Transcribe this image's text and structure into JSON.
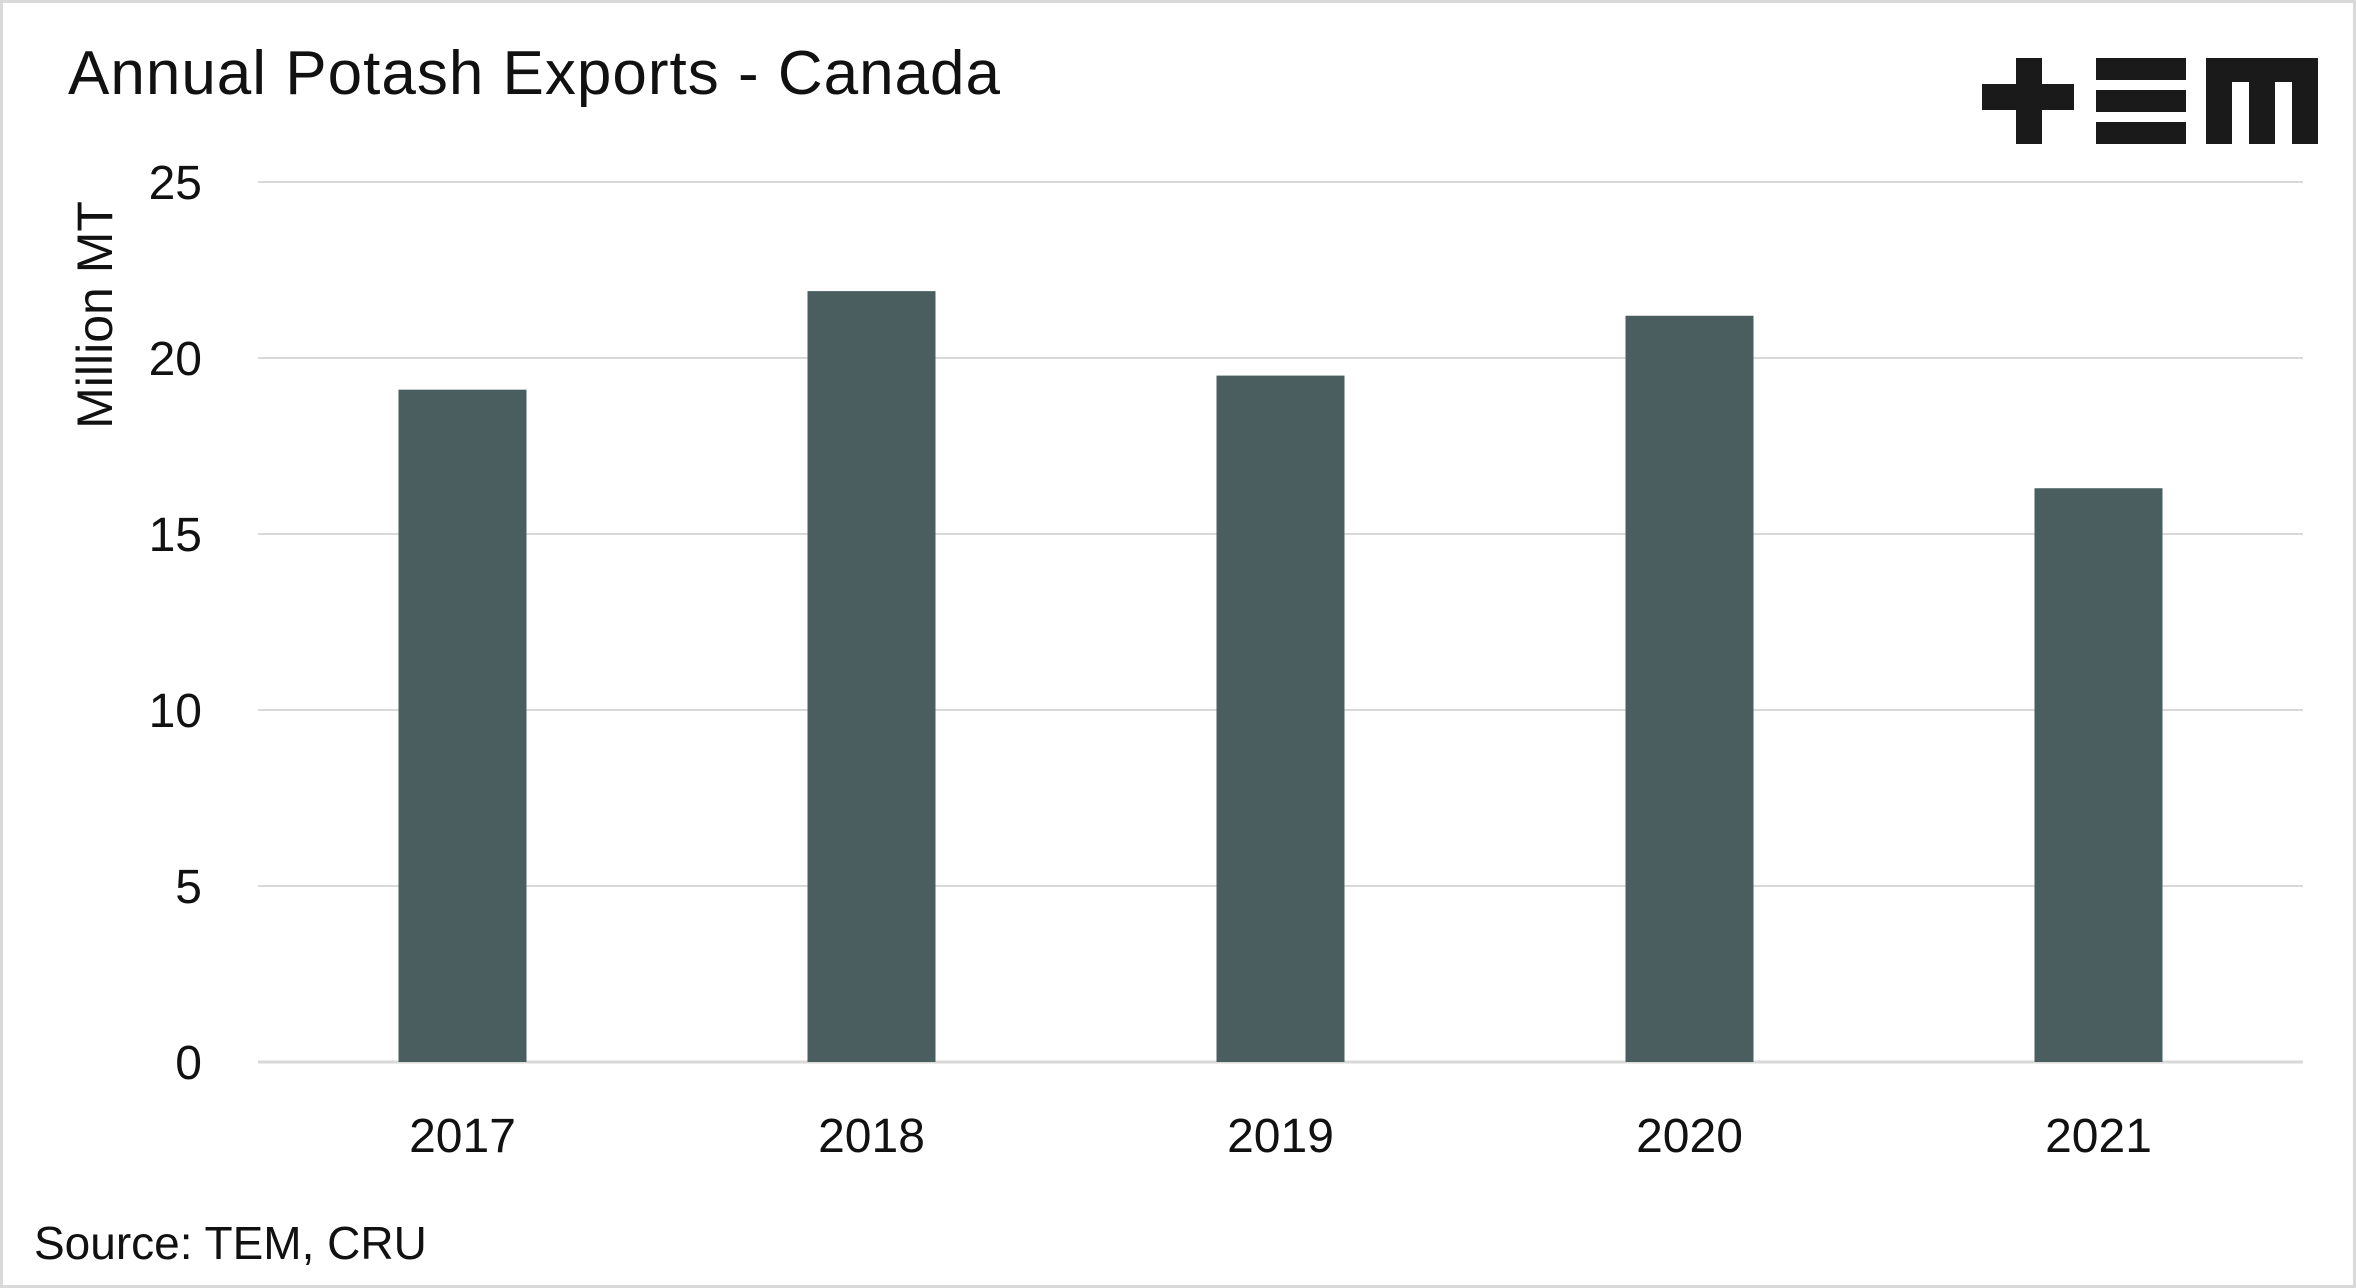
{
  "title": "Annual Potash Exports - Canada",
  "source": "Source: TEM, CRU",
  "logo": {
    "text": "TEM",
    "icon": "tem-logo-icon",
    "color": "#1a1a1a"
  },
  "colors": {
    "bar": "#4a5e5f",
    "grid": "#d9d9d9",
    "text": "#111111"
  },
  "chart_data": {
    "type": "bar",
    "categories": [
      "2017",
      "2018",
      "2019",
      "2020",
      "2021"
    ],
    "values": [
      19.1,
      21.9,
      19.5,
      21.2,
      16.3
    ],
    "title": "Annual Potash Exports - Canada",
    "xlabel": "",
    "ylabel": "Million MT",
    "ylim": [
      0,
      25
    ],
    "yticks": [
      0,
      5,
      10,
      15,
      20,
      25
    ],
    "grid": true,
    "legend": "none"
  }
}
